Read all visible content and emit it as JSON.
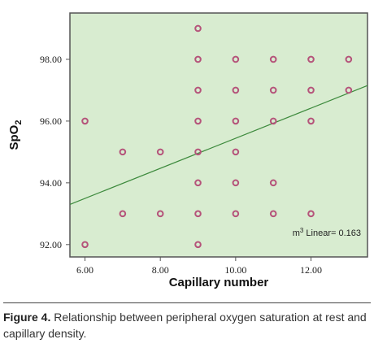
{
  "chart_data": {
    "type": "scatter",
    "xlabel": "Capillary number",
    "ylabel_main": "SpO",
    "ylabel_sub": "2",
    "xlim": [
      5.6,
      13.5
    ],
    "ylim": [
      91.6,
      99.5
    ],
    "xticks": [
      6,
      8,
      10,
      12
    ],
    "xtick_labels": [
      "6.00",
      "8.00",
      "10.00",
      "12.00"
    ],
    "yticks": [
      92,
      94,
      96,
      98
    ],
    "ytick_labels": [
      "92.00",
      "94.00",
      "96.00",
      "98.00"
    ],
    "grid": false,
    "points": [
      [
        6,
        96
      ],
      [
        6,
        92
      ],
      [
        7,
        95
      ],
      [
        7,
        93
      ],
      [
        8,
        95
      ],
      [
        8,
        93
      ],
      [
        9,
        99
      ],
      [
        9,
        98
      ],
      [
        9,
        97
      ],
      [
        9,
        96
      ],
      [
        9,
        95
      ],
      [
        9,
        94
      ],
      [
        9,
        93
      ],
      [
        9,
        92
      ],
      [
        10,
        98
      ],
      [
        10,
        97
      ],
      [
        10,
        96
      ],
      [
        10,
        95
      ],
      [
        10,
        94
      ],
      [
        10,
        93
      ],
      [
        11,
        98
      ],
      [
        11,
        97
      ],
      [
        11,
        96
      ],
      [
        11,
        94
      ],
      [
        11,
        93
      ],
      [
        12,
        98
      ],
      [
        12,
        97
      ],
      [
        12,
        96
      ],
      [
        12,
        93
      ],
      [
        13,
        98
      ],
      [
        13,
        97
      ]
    ],
    "fit_line": {
      "x": [
        5.6,
        13.5
      ],
      "y": [
        93.3,
        97.15
      ]
    },
    "annotation": {
      "prefix": "m",
      "sup": "3",
      "text": " Linear= 0.163"
    },
    "colors": {
      "background": "#d8ecd0",
      "frame": "#555555",
      "marker": "#b5537a",
      "fit_line": "#3d8a3d"
    }
  },
  "caption": {
    "label": "Figure 4.",
    "text": " Relationship between peripheral oxygen saturation at rest and capillary density."
  }
}
